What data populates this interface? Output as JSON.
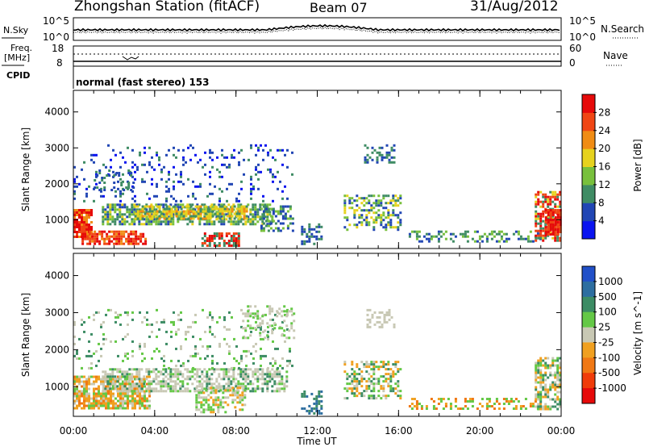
{
  "header": {
    "station": "Zhongshan Station (fitACF)",
    "beam": "Beam 07",
    "date": "31/Aug/2012"
  },
  "sky_panel": {
    "left_label": "N.Sky",
    "left_top_tick": "10^5",
    "left_bottom_tick": "10^0",
    "right_top_tick": "10^5",
    "right_bottom_tick": "10^0",
    "right_label": "N.Search"
  },
  "freq_panel": {
    "left_label_1": "Freq.",
    "left_label_2": "[MHz]",
    "left_top_tick": "18",
    "left_bottom_tick": "8",
    "right_top_tick": "60",
    "right_bottom_tick": "0",
    "right_label": "Nave"
  },
  "cpid_panel": {
    "label": "CPID",
    "text": "normal (fast stereo) 153"
  },
  "chart_data": [
    {
      "type": "heatmap",
      "name": "power",
      "ylabel": "Slant Range [km]",
      "yticks": [
        "1000",
        "2000",
        "3000",
        "4000"
      ],
      "ylim": [
        200,
        4600
      ],
      "colorbar_label": "Power [dB]",
      "colorbar_ticks": [
        "4",
        "8",
        "12",
        "16",
        "20",
        "24",
        "28"
      ],
      "colorbar_colors": [
        "#0a14f0",
        "#2146b4",
        "#3f8c64",
        "#78c03c",
        "#e6d21e",
        "#f08c14",
        "#f04614",
        "#e60a0a"
      ]
    },
    {
      "type": "heatmap",
      "name": "velocity",
      "ylabel": "Slant Range [km]",
      "yticks": [
        "1000",
        "2000",
        "3000",
        "4000"
      ],
      "ylim": [
        200,
        4600
      ],
      "colorbar_label": "Velocity [m s^-1]",
      "colorbar_ticks": [
        "1000",
        "500",
        "100",
        "25",
        "-25",
        "-100",
        "-500",
        "-1000"
      ],
      "colorbar_colors": [
        "#2150c8",
        "#2d6ea0",
        "#3c8c64",
        "#64c846",
        "#c8c8b4",
        "#f0a020",
        "#f07814",
        "#f03c0a",
        "#e60a0a"
      ]
    }
  ],
  "xaxis": {
    "ticks": [
      "00:00",
      "04:00",
      "08:00",
      "12:00",
      "16:00",
      "20:00",
      "00:00"
    ],
    "label": "Time UT"
  }
}
